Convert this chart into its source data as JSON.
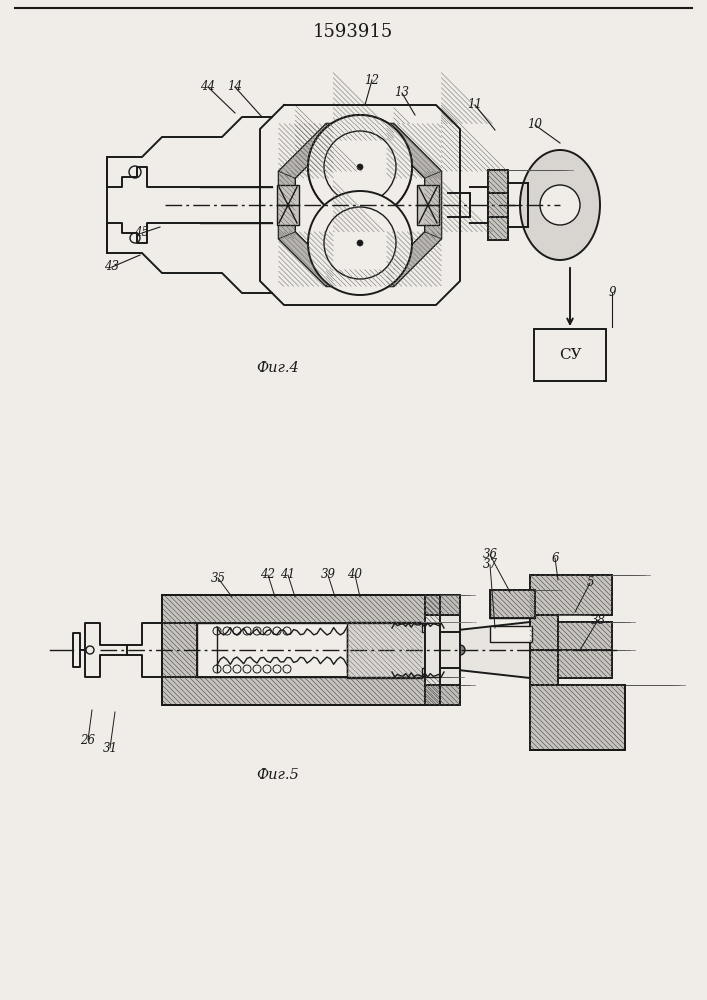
{
  "title": "1593915",
  "bg_color": "#f0ede8",
  "line_color": "#1a1a1a",
  "fig4_caption": "Фиг.4",
  "fig5_caption": "Фиг.5",
  "annotation_fontsize": 8.5,
  "caption_fontsize": 10.5
}
